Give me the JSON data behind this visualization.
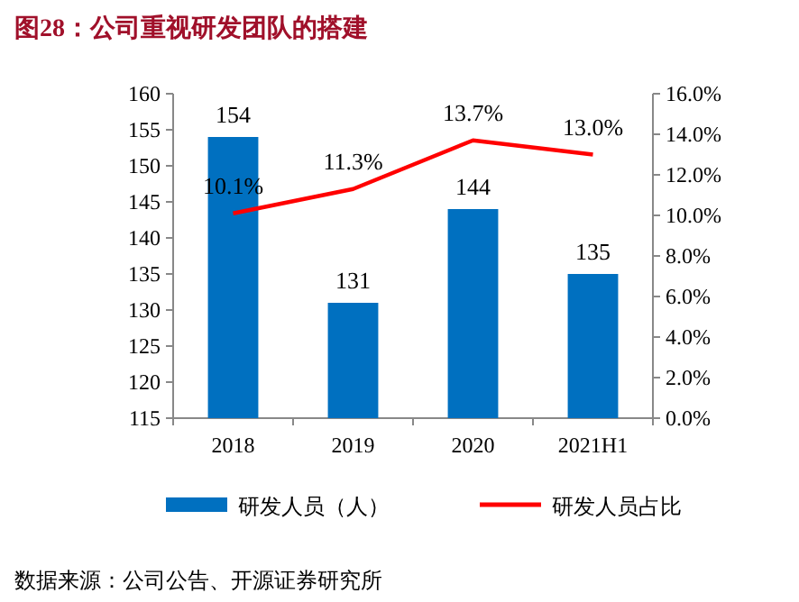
{
  "chart_data": {
    "type": "bar",
    "title": "图28：公司重视研发团队的搭建",
    "categories": [
      "2018",
      "2019",
      "2020",
      "2021H1"
    ],
    "series": [
      {
        "name": "研发人员（人）",
        "color": "#0070c0",
        "values": [
          154,
          131,
          144,
          135
        ],
        "value_labels": [
          "154",
          "131",
          "144",
          "135"
        ]
      },
      {
        "name": "研发人员占比",
        "type": "line",
        "axis": "y2",
        "color": "#ff0000",
        "values": [
          10.1,
          11.3,
          13.7,
          13.0
        ],
        "value_labels": [
          "10.1%",
          "11.3%",
          "13.7%",
          "13.0%"
        ]
      }
    ],
    "ylim": [
      115,
      160
    ],
    "yticks": [
      115,
      120,
      125,
      130,
      135,
      140,
      145,
      150,
      155,
      160
    ],
    "y2lim": [
      0,
      16
    ],
    "y2ticks": [
      {
        "value": 0,
        "label": "0.0%"
      },
      {
        "value": 2,
        "label": "2.0%"
      },
      {
        "value": 4,
        "label": "4.0%"
      },
      {
        "value": 6,
        "label": "6.0%"
      },
      {
        "value": 8,
        "label": "8.0%"
      },
      {
        "value": 10,
        "label": "10.0%"
      },
      {
        "value": 12,
        "label": "12.0%"
      },
      {
        "value": 14,
        "label": "14.0%"
      },
      {
        "value": 16,
        "label": "16.0%"
      }
    ],
    "legend": "bottom",
    "grid": false,
    "marker": "none",
    "annotations": [
      "数据来源：公司公告、开源证券研究所"
    ]
  }
}
